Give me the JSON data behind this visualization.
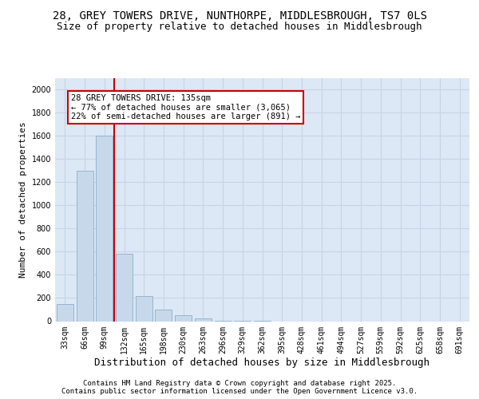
{
  "title_line1": "28, GREY TOWERS DRIVE, NUNTHORPE, MIDDLESBROUGH, TS7 0LS",
  "title_line2": "Size of property relative to detached houses in Middlesbrough",
  "xlabel": "Distribution of detached houses by size in Middlesbrough",
  "ylabel": "Number of detached properties",
  "categories": [
    "33sqm",
    "66sqm",
    "99sqm",
    "132sqm",
    "165sqm",
    "198sqm",
    "230sqm",
    "263sqm",
    "296sqm",
    "329sqm",
    "362sqm",
    "395sqm",
    "428sqm",
    "461sqm",
    "494sqm",
    "527sqm",
    "559sqm",
    "592sqm",
    "625sqm",
    "658sqm",
    "691sqm"
  ],
  "values": [
    150,
    1300,
    1600,
    580,
    220,
    100,
    55,
    25,
    5,
    2,
    1,
    0,
    0,
    0,
    0,
    0,
    0,
    0,
    0,
    0,
    0
  ],
  "bar_color": "#c8d8eb",
  "bar_edge_color": "#8ab0cc",
  "vline_index": 2.5,
  "vline_color": "#cc0000",
  "annotation_text": "28 GREY TOWERS DRIVE: 135sqm\n← 77% of detached houses are smaller (3,065)\n22% of semi-detached houses are larger (891) →",
  "annotation_box_color": "white",
  "annotation_box_edge_color": "#cc0000",
  "ylim": [
    0,
    2100
  ],
  "yticks": [
    0,
    200,
    400,
    600,
    800,
    1000,
    1200,
    1400,
    1600,
    1800,
    2000
  ],
  "grid_color": "#c8d4e8",
  "bg_color": "#dce8f5",
  "footer_line1": "Contains HM Land Registry data © Crown copyright and database right 2025.",
  "footer_line2": "Contains public sector information licensed under the Open Government Licence v3.0.",
  "title_fontsize": 10,
  "subtitle_fontsize": 9,
  "ylabel_fontsize": 8,
  "xlabel_fontsize": 9,
  "tick_fontsize": 7,
  "annotation_fontsize": 7.5,
  "footer_fontsize": 6.5
}
